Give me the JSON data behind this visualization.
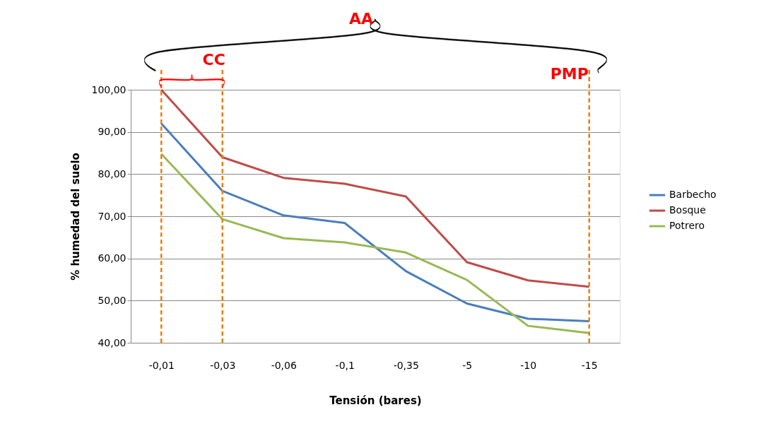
{
  "chart_data": {
    "type": "line",
    "xlabel": "Tensión (bares)",
    "ylabel": "% humedad del suelo",
    "categories": [
      "-0,01",
      "-0,03",
      "-0,06",
      "-0,1",
      "-0,35",
      "-5",
      "-10",
      "-15"
    ],
    "series": [
      {
        "name": "Barbecho",
        "color": "#4a7ebb",
        "values": [
          92.0,
          76.0,
          70.2,
          68.4,
          57.0,
          49.3,
          45.7,
          45.1
        ]
      },
      {
        "name": "Bosque",
        "color": "#be4b48",
        "values": [
          100.0,
          84.0,
          79.1,
          77.7,
          74.7,
          59.1,
          54.8,
          53.3
        ]
      },
      {
        "name": "Potrero",
        "color": "#98b954",
        "values": [
          84.8,
          69.3,
          64.8,
          63.8,
          61.4,
          54.9,
          44.0,
          42.3
        ]
      }
    ],
    "ylim": [
      40,
      100
    ],
    "yticks": [
      {
        "value": 40,
        "label": "40,00"
      },
      {
        "value": 50,
        "label": "50,00"
      },
      {
        "value": 60,
        "label": "60,00"
      },
      {
        "value": 70,
        "label": "70,00"
      },
      {
        "value": 80,
        "label": "80,00"
      },
      {
        "value": 90,
        "label": "90,00"
      },
      {
        "value": 100,
        "label": "100,00"
      }
    ],
    "grid": "y",
    "legend": "right",
    "marker": "none",
    "line_style": "solid",
    "ref_lines": [
      {
        "axis": "x",
        "value": "-0,01",
        "label": null,
        "color": "#f07f09",
        "line_style": "dashed"
      },
      {
        "axis": "x",
        "value": "-0,03",
        "label": null,
        "color": "#f07f09",
        "line_style": "dashed"
      },
      {
        "axis": "x",
        "value": "-15",
        "label": null,
        "color": "#f07f09",
        "line_style": "dashed"
      }
    ],
    "annotations": [
      "AA",
      "CC",
      "PMP"
    ]
  }
}
